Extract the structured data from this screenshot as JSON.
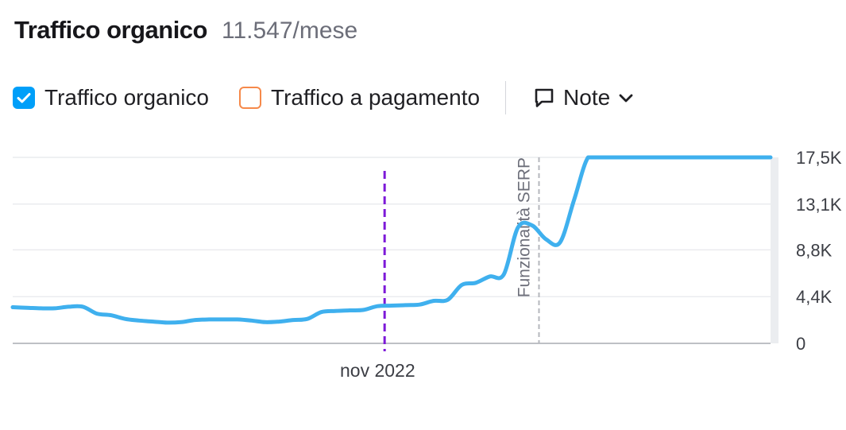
{
  "header": {
    "title": "Traffico organico",
    "value": "11.547/mese"
  },
  "legend": {
    "organic_label": "Traffico organico",
    "paid_label": "Traffico a pagamento",
    "notes_label": "Note"
  },
  "colors": {
    "organic": "#3fb0ee",
    "paid": "#f6894a",
    "checkbox": "#009ff9",
    "note_marker": "#7d19d8",
    "serp_marker": "#b5b7bd"
  },
  "icons": {
    "organic_checkbox": "check-icon",
    "notes": "speech-bubble-icon",
    "notes_dropdown": "chevron-down-icon"
  },
  "chart_data": {
    "type": "line",
    "title": "",
    "xlabel": "",
    "ylabel": "",
    "ylim": [
      0,
      17500
    ],
    "y_axis_position": "right",
    "grid": true,
    "y_ticks": [
      {
        "value": 0,
        "label": "0"
      },
      {
        "value": 4400,
        "label": "4,4K"
      },
      {
        "value": 8800,
        "label": "8,8K"
      },
      {
        "value": 13100,
        "label": "13,1K"
      },
      {
        "value": 17500,
        "label": "17,5K"
      }
    ],
    "x_ticks": [
      {
        "x": 26,
        "label": "nov 2022"
      }
    ],
    "xlim": [
      0,
      54
    ],
    "series": [
      {
        "name": "Traffico organico",
        "x": [
          0,
          1,
          2,
          3,
          4,
          5,
          6,
          7,
          8,
          9,
          10,
          11,
          12,
          13,
          14,
          15,
          16,
          17,
          18,
          19,
          20,
          21,
          22,
          23,
          24,
          25,
          26,
          27,
          28,
          29,
          30,
          31,
          32,
          33,
          34,
          35,
          36,
          37,
          38,
          39,
          40,
          41,
          42,
          43,
          44,
          45,
          46,
          47,
          48,
          49,
          50,
          51,
          52,
          53,
          54
        ],
        "values": [
          3400,
          3350,
          3300,
          3300,
          3450,
          3450,
          2800,
          2650,
          2300,
          2150,
          2050,
          1950,
          2000,
          2200,
          2250,
          2250,
          2250,
          2150,
          2000,
          2050,
          2200,
          2300,
          2950,
          3050,
          3100,
          3150,
          3500,
          3550,
          3600,
          3650,
          4000,
          4100,
          5500,
          5700,
          6300,
          6500,
          10900,
          11100,
          9800,
          9500,
          13500,
          17500,
          17500,
          17500,
          17500,
          17500,
          17500,
          17500,
          17500,
          17500,
          17500,
          17500,
          17500,
          17500,
          17500
        ]
      }
    ],
    "annotations": [
      {
        "type": "note",
        "x": 26.5
      },
      {
        "type": "event",
        "x": 37.5,
        "label": "Funzionalità SERP"
      }
    ]
  }
}
